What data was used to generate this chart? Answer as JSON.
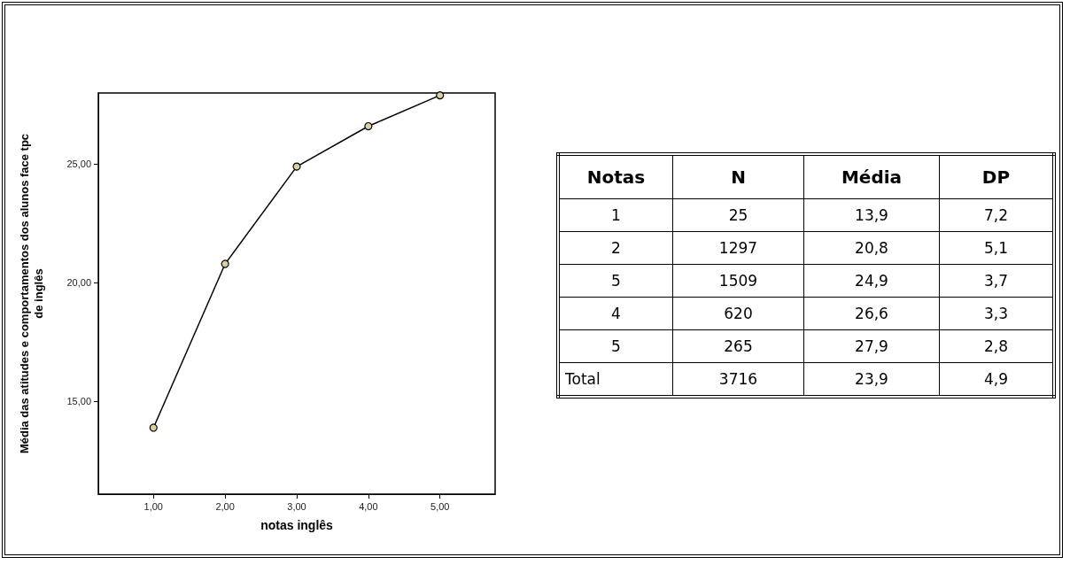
{
  "chart_data": [
    {
      "type": "line",
      "xlabel": "notas inglês",
      "ylabel": "Média das atitudes e comportamentos dos alunos face tpc de inglês",
      "x": [
        1,
        2,
        3,
        4,
        5
      ],
      "series": [
        {
          "color": "#000000",
          "values": [
            13.9,
            20.8,
            24.9,
            26.6,
            27.9
          ]
        }
      ],
      "marker": "circle",
      "line_style": "solid",
      "grid": false,
      "xlim": [
        0.23,
        5.77
      ],
      "xticks": [
        {
          "value": 1,
          "label": "1,00"
        },
        {
          "value": 2,
          "label": "2,00"
        },
        {
          "value": 3,
          "label": "3,00"
        },
        {
          "value": 4,
          "label": "4,00"
        },
        {
          "value": 5,
          "label": "5,00"
        }
      ],
      "ylim": [
        11.1,
        28.0
      ],
      "yticks": [
        {
          "value": 15,
          "label": "15,00"
        },
        {
          "value": 20,
          "label": "20,00"
        },
        {
          "value": 25,
          "label": "25,00"
        }
      ]
    },
    {
      "type": "other",
      "categories": [
        "Notas",
        "N",
        "Média",
        "DP"
      ],
      "cell_labels": [
        [
          "1",
          "25",
          "13,9",
          "7,2"
        ],
        [
          "2",
          "1297",
          "20,8",
          "5,1"
        ],
        [
          "5",
          "1509",
          "24,9",
          "3,7"
        ],
        [
          "4",
          "620",
          "26,6",
          "3,3"
        ],
        [
          "5",
          "265",
          "27,9",
          "2,8"
        ],
        [
          "Total",
          "3716",
          "23,9",
          "4,9"
        ]
      ]
    }
  ]
}
